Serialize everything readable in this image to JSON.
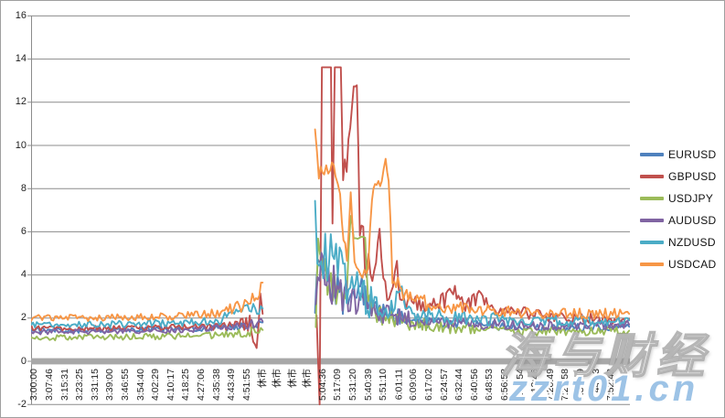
{
  "watermark": {
    "brand_text": "海与财经",
    "site_text": "zzrt01.cn",
    "site_color": "#9DC3E6"
  },
  "chart_data": {
    "type": "line",
    "title": "",
    "xlabel": "",
    "ylabel": "",
    "ylim": [
      -2,
      16
    ],
    "yticks": [
      16,
      14,
      12,
      10,
      8,
      6,
      4,
      2,
      0,
      -2
    ],
    "grid": "on",
    "legend_position": "right",
    "axis_colors": {
      "gridline": "#8C8C8C",
      "zero_band": "#A8A8A8",
      "tick_label": "#1F1F1F"
    },
    "categories": [
      "3:00:00",
      "3:07:46",
      "3:15:31",
      "3:23:25",
      "3:31:15",
      "3:39:00",
      "3:46:55",
      "3:54:40",
      "4:02:29",
      "4:10:17",
      "4:18:25",
      "4:27:06",
      "4:35:38",
      "4:43:49",
      "4:51:55",
      "休市",
      "休市",
      "休市",
      "休市",
      "5:04:36",
      "5:17:09",
      "5:31:20",
      "5:40:39",
      "5:51:10",
      "6:01:11",
      "6:09:06",
      "6:17:02",
      "6:24:57",
      "6:32:44",
      "6:40:56",
      "6:48:53",
      "6:56:52",
      "7:04:54",
      "7:12:46",
      "7:20:49",
      "7:28:58",
      "7:36:49",
      "7:44:43",
      "7:52:42"
    ],
    "closed_market_label": "休市",
    "point_format": "[category_index, spread_value, jitter_amplitude]; gap between segments = market closed (no data)",
    "series": [
      {
        "name": "EURUSD",
        "color": "#4F81BD",
        "segments": [
          [
            [
              -0.2,
              1.45,
              0.12
            ],
            [
              4,
              1.42,
              0.12
            ],
            [
              8,
              1.48,
              0.13
            ],
            [
              12,
              1.55,
              0.15
            ],
            [
              14,
              1.62,
              0.18
            ],
            [
              15.05,
              1.8,
              0.2
            ]
          ],
          [
            [
              18.5,
              2.3,
              0.5
            ],
            [
              18.7,
              4.8,
              0.9
            ],
            [
              19.3,
              3.8,
              1.1
            ],
            [
              20.1,
              3.1,
              0.9
            ],
            [
              20.9,
              2.8,
              0.7
            ],
            [
              21.7,
              3.2,
              0.8
            ],
            [
              22.5,
              2.4,
              0.6
            ],
            [
              23.5,
              2.1,
              0.45
            ],
            [
              24.8,
              1.9,
              0.3
            ],
            [
              27,
              1.75,
              0.25
            ],
            [
              30,
              1.65,
              0.2
            ],
            [
              34,
              1.55,
              0.18
            ],
            [
              39.2,
              1.6,
              0.18
            ]
          ]
        ]
      },
      {
        "name": "GBPUSD",
        "color": "#C0504D",
        "segments": [
          [
            [
              -0.2,
              1.55,
              0.12
            ],
            [
              5,
              1.52,
              0.12
            ],
            [
              10,
              1.58,
              0.14
            ],
            [
              13,
              1.65,
              0.2
            ],
            [
              14.2,
              1.75,
              0.45
            ],
            [
              14.65,
              0.5,
              0.15
            ],
            [
              14.9,
              2.9,
              0.25
            ],
            [
              15.05,
              2.2,
              0.2
            ]
          ],
          [
            [
              18.6,
              2.2,
              0.3
            ],
            [
              18.8,
              -2,
              0
            ],
            [
              18.95,
              13.62,
              0
            ],
            [
              19.55,
              13.62,
              0
            ],
            [
              19.65,
              6.2,
              0.3
            ],
            [
              19.8,
              13.62,
              0
            ],
            [
              20.2,
              13.62,
              0
            ],
            [
              20.35,
              8.2,
              0.7
            ],
            [
              20.7,
              9.5,
              0.8
            ],
            [
              21.05,
              12.75,
              0.08
            ],
            [
              21.25,
              12.75,
              0.05
            ],
            [
              21.45,
              6.3,
              0.9
            ],
            [
              21.9,
              4.6,
              0.8
            ],
            [
              22.4,
              4.0,
              0.6
            ],
            [
              22.75,
              6.2,
              0.2
            ],
            [
              23.0,
              3.4,
              0.5
            ],
            [
              23.5,
              3.0,
              0.45
            ],
            [
              23.9,
              4.6,
              0.2
            ],
            [
              24.1,
              2.9,
              0.4
            ],
            [
              25,
              2.6,
              0.4
            ],
            [
              26.8,
              2.7,
              0.45
            ],
            [
              27.6,
              3.3,
              0.3
            ],
            [
              28.4,
              2.6,
              0.4
            ],
            [
              29.3,
              3.0,
              0.3
            ],
            [
              30.5,
              2.4,
              0.3
            ],
            [
              32,
              2.25,
              0.28
            ],
            [
              34.5,
              2.05,
              0.25
            ],
            [
              39.2,
              1.95,
              0.22
            ]
          ]
        ]
      },
      {
        "name": "USDJPY",
        "color": "#9BBB59",
        "segments": [
          [
            [
              -0.2,
              1.1,
              0.14
            ],
            [
              5,
              1.12,
              0.14
            ],
            [
              10,
              1.18,
              0.15
            ],
            [
              13,
              1.25,
              0.18
            ],
            [
              15.05,
              1.45,
              0.22
            ]
          ],
          [
            [
              18.55,
              1.8,
              0.4
            ],
            [
              18.7,
              5.0,
              0.8
            ],
            [
              19.2,
              3.8,
              1.1
            ],
            [
              19.9,
              3.2,
              0.9
            ],
            [
              20.6,
              3.3,
              0.8
            ],
            [
              20.85,
              6.8,
              0.08
            ],
            [
              21.05,
              5.75,
              0.1
            ],
            [
              21.8,
              5.75,
              0.1
            ],
            [
              22.0,
              2.7,
              0.6
            ],
            [
              22.7,
              2.1,
              0.5
            ],
            [
              23.5,
              1.95,
              0.45
            ],
            [
              24.6,
              1.75,
              0.35
            ],
            [
              26.3,
              1.6,
              0.3
            ],
            [
              29,
              1.5,
              0.25
            ],
            [
              33,
              1.4,
              0.22
            ],
            [
              39.2,
              1.42,
              0.22
            ]
          ]
        ]
      },
      {
        "name": "AUDUSD",
        "color": "#8064A2",
        "segments": [
          [
            [
              -0.2,
              1.35,
              0.12
            ],
            [
              5,
              1.38,
              0.12
            ],
            [
              10,
              1.45,
              0.14
            ],
            [
              13,
              1.55,
              0.18
            ],
            [
              15.05,
              1.85,
              0.25
            ]
          ],
          [
            [
              18.55,
              2.6,
              0.7
            ],
            [
              18.8,
              4.5,
              1.1
            ],
            [
              19.5,
              3.7,
              1.0
            ],
            [
              20.3,
              3.1,
              0.85
            ],
            [
              21.2,
              2.8,
              0.7
            ],
            [
              22.1,
              2.55,
              0.6
            ],
            [
              23.1,
              2.25,
              0.5
            ],
            [
              24.3,
              2.0,
              0.4
            ],
            [
              26.3,
              1.85,
              0.3
            ],
            [
              29,
              1.75,
              0.25
            ],
            [
              33,
              1.65,
              0.22
            ],
            [
              39.2,
              1.7,
              0.22
            ]
          ]
        ]
      },
      {
        "name": "NZDUSD",
        "color": "#4BACC6",
        "segments": [
          [
            [
              -0.2,
              1.7,
              0.15
            ],
            [
              5,
              1.72,
              0.15
            ],
            [
              10,
              1.8,
              0.18
            ],
            [
              12.8,
              2.0,
              0.28
            ],
            [
              13.8,
              2.3,
              0.3
            ],
            [
              15.05,
              2.45,
              0.3
            ]
          ],
          [
            [
              18.5,
              7.5,
              0.12
            ],
            [
              18.65,
              5.2,
              1.6
            ],
            [
              19.3,
              4.7,
              1.6
            ],
            [
              20.0,
              4.1,
              1.4
            ],
            [
              20.7,
              3.5,
              1.1
            ],
            [
              21.5,
              3.0,
              0.95
            ],
            [
              22.3,
              2.7,
              0.75
            ],
            [
              23.3,
              2.4,
              0.55
            ],
            [
              24.1,
              3.2,
              0.6
            ],
            [
              24.8,
              2.2,
              0.4
            ],
            [
              26.8,
              2.05,
              0.35
            ],
            [
              30,
              1.95,
              0.3
            ],
            [
              34,
              1.85,
              0.25
            ],
            [
              39.2,
              1.9,
              0.25
            ]
          ]
        ]
      },
      {
        "name": "USDCAD",
        "color": "#F79646",
        "segments": [
          [
            [
              -0.2,
              2.0,
              0.15
            ],
            [
              5,
              2.02,
              0.15
            ],
            [
              10,
              2.1,
              0.18
            ],
            [
              12.3,
              2.2,
              0.25
            ],
            [
              13.5,
              2.55,
              0.3
            ],
            [
              14.5,
              2.85,
              0.35
            ],
            [
              15.05,
              3.65,
              0.25
            ]
          ],
          [
            [
              18.5,
              10.6,
              0.15
            ],
            [
              18.75,
              8.9,
              0.5
            ],
            [
              19.1,
              8.2,
              0.7
            ],
            [
              19.5,
              9.2,
              0.5
            ],
            [
              19.85,
              8.6,
              0.6
            ],
            [
              20.15,
              6.9,
              0.9
            ],
            [
              20.6,
              5.3,
              0.8
            ],
            [
              20.85,
              7.9,
              0.35
            ],
            [
              21.1,
              4.7,
              0.5
            ],
            [
              21.5,
              4.1,
              0.45
            ],
            [
              22.0,
              4.5,
              0.5
            ],
            [
              22.25,
              7.5,
              0.3
            ],
            [
              22.45,
              8.35,
              0.18
            ],
            [
              22.9,
              8.2,
              0.22
            ],
            [
              23.15,
              9.35,
              0.08
            ],
            [
              23.35,
              8.3,
              0.2
            ],
            [
              23.6,
              3.9,
              0.5
            ],
            [
              24.2,
              3.1,
              0.45
            ],
            [
              25.1,
              2.8,
              0.4
            ],
            [
              26.8,
              2.55,
              0.35
            ],
            [
              28.8,
              2.4,
              0.3
            ],
            [
              31,
              2.3,
              0.28
            ],
            [
              34,
              2.2,
              0.25
            ],
            [
              39.2,
              2.2,
              0.25
            ]
          ]
        ]
      }
    ]
  }
}
